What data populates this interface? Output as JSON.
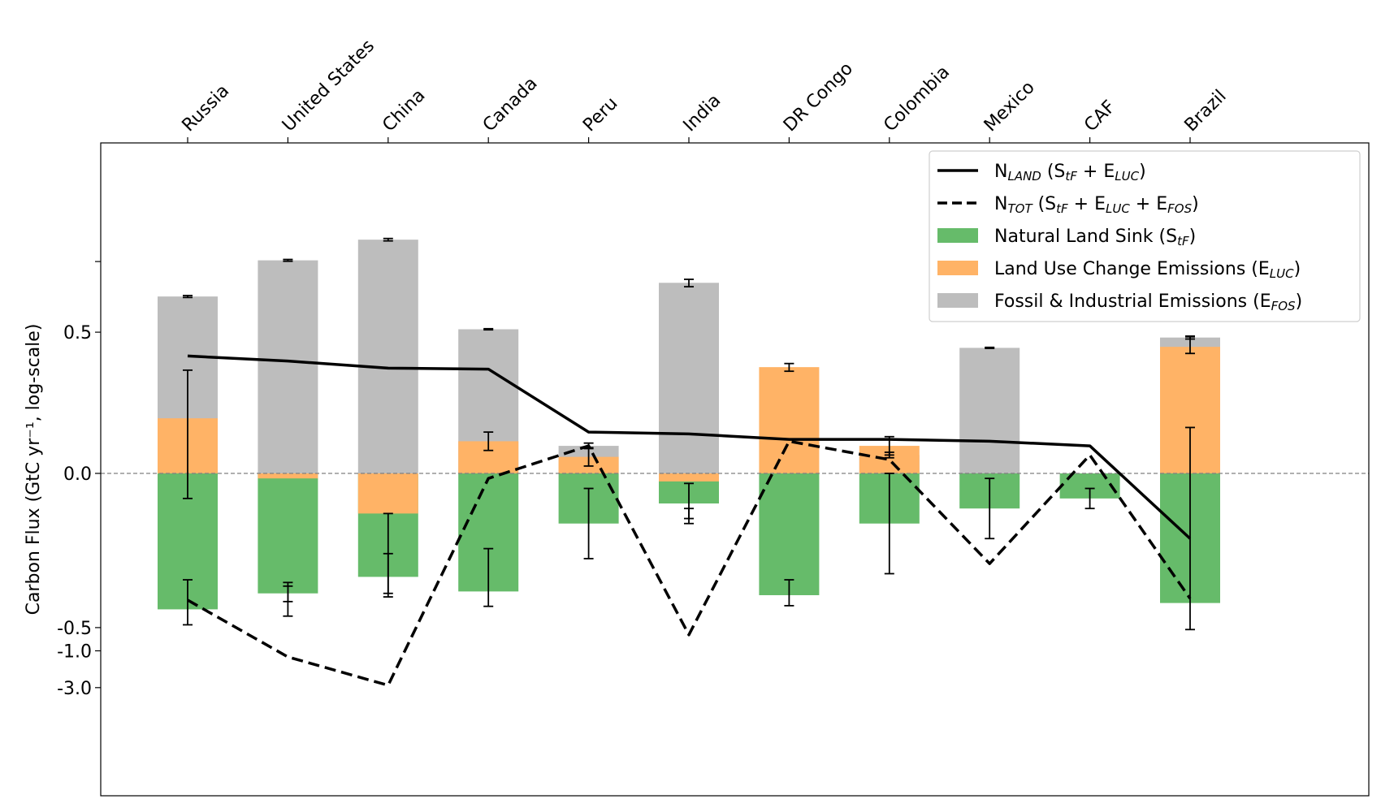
{
  "chart_data": {
    "type": "bar",
    "yscale": "symlog",
    "ylabel": "Carbon Flux (GtC yr⁻¹, log-scale)",
    "categories": [
      "Russia",
      "United States",
      "China",
      "Canada",
      "Peru",
      "India",
      "DR Congo",
      "Colombia",
      "Mexico",
      "CAF",
      "Brazil"
    ],
    "yticks": [
      {
        "value": 0.5,
        "label": "0.5"
      },
      {
        "value": 0.0,
        "label": "0.0"
      },
      {
        "value": -0.5,
        "label": "-0.5"
      },
      {
        "value": -1.0,
        "label": "-1.0"
      },
      {
        "value": -3.0,
        "label": "-3.0"
      }
    ],
    "zero_line": "dashed grey",
    "legend_position": "top-right",
    "series": [
      {
        "key": "stf",
        "kind": "bar",
        "color": "#66bb6a",
        "legend": {
          "main": "Natural Land Sink (S",
          "sub": "tF",
          "tail": ")"
        },
        "values": [
          -0.29,
          -0.18,
          -0.11,
          -0.17,
          -0.05,
          -0.03,
          -0.19,
          -0.05,
          -0.035,
          -0.025,
          -0.24
        ],
        "error": [
          0.17,
          0.05,
          0.07,
          0.095,
          0.035,
          0.02,
          0.07,
          0.05,
          0.03,
          0.01,
          0.29
        ]
      },
      {
        "key": "eluc",
        "kind": "bar",
        "color": "#ffb366",
        "legend": {
          "main": "Land Use Change Emissions (E",
          "sub": "LUC",
          "tail": ")"
        },
        "values": [
          0.06,
          -0.005,
          -0.04,
          0.035,
          0.018,
          -0.008,
          0.16,
          0.03,
          0.0,
          0.0,
          0.31
        ],
        "error": [
          0.085,
          0.105,
          0.06,
          0.01,
          0.01,
          0.005,
          0.02,
          0.01,
          0.0,
          0.0,
          0.09
        ],
        "error_center": [
          0.06,
          -0.25,
          -0.14,
          0.035,
          0.018,
          -0.04,
          0.16,
          0.03,
          0.0,
          0.0,
          0.34
        ]
      },
      {
        "key": "efos",
        "kind": "bar",
        "color": "#bdbdbd",
        "legend": {
          "main": "Fossil & Industrial Emissions (E",
          "sub": "FOS",
          "tail": ")"
        },
        "values": [
          1.6,
          5.2,
          10.2,
          0.55,
          0.03,
          2.5,
          0.0,
          0.02,
          0.3,
          0.0,
          0.42
        ],
        "error": [
          0.05,
          0.15,
          0.4,
          0.01,
          0.003,
          0.3,
          0.0,
          0.003,
          0.005,
          0.0,
          0.02
        ]
      },
      {
        "key": "nland",
        "kind": "line",
        "style": "solid",
        "legend": {
          "main": "N",
          "sub": "LAND",
          "rest": [
            " (S",
            "tF",
            " + E",
            "LUC",
            ")"
          ]
        },
        "values": [
          0.23,
          0.195,
          0.155,
          0.15,
          0.045,
          0.043,
          0.037,
          0.037,
          0.035,
          0.03,
          -0.065
        ]
      },
      {
        "key": "ntot",
        "kind": "line",
        "style": "dashed",
        "legend": {
          "main": "N",
          "sub": "TOT",
          "rest": [
            " (S",
            "tF",
            " + E",
            "LUC",
            " + E",
            "FOS",
            ")"
          ]
        },
        "values": [
          -0.22,
          -1.2,
          -2.8,
          -0.005,
          0.03,
          -0.62,
          0.035,
          0.015,
          -0.09,
          0.02,
          -0.21
        ]
      }
    ]
  }
}
